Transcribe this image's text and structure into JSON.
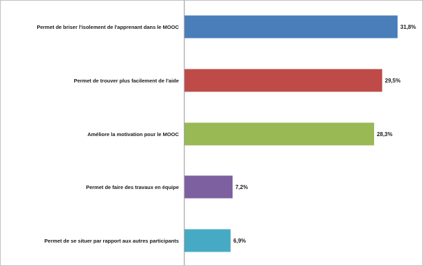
{
  "chart_data": {
    "type": "bar",
    "orientation": "horizontal",
    "categories": [
      "Permet de briser l'isolement de l'apprenant dans le MOOC",
      "Permet de trouver plus facilement de l'aide",
      "Améliore la motivation pour le MOOC",
      "Permet de faire des travaux en équipe",
      "Permet de se situer par rapport aux autres participants"
    ],
    "values": [
      31.8,
      29.5,
      28.3,
      7.2,
      6.9
    ],
    "value_labels": [
      "31,8%",
      "29,5%",
      "28,3%",
      "7,2%",
      "6,9%"
    ],
    "colors": [
      "#4a7ebb",
      "#be4b48",
      "#98b954",
      "#7d60a0",
      "#46aac5"
    ],
    "xlim": [
      0,
      100
    ],
    "grid": false,
    "legend": "none"
  }
}
